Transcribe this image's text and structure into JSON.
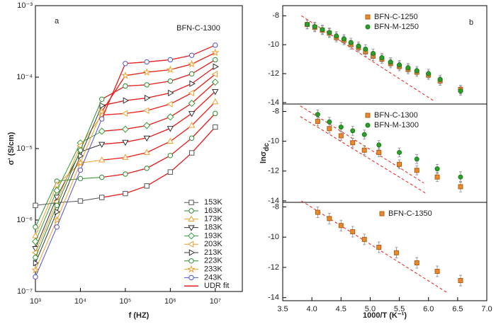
{
  "chart_data": [
    {
      "type": "line",
      "panel_label": "a",
      "annotation": "BFN-C-1300",
      "xlabel": "f (HZ)",
      "ylabel": "σ' (S/cm)",
      "log_x": true,
      "log_y": true,
      "xlim": [
        1000,
        40000000
      ],
      "ylim": [
        1e-07,
        0.001
      ],
      "xticks": [
        {
          "value": 1000,
          "label": "10³"
        },
        {
          "value": 10000,
          "label": "10⁴"
        },
        {
          "value": 100000,
          "label": "10⁵"
        },
        {
          "value": 1000000,
          "label": "10⁶"
        },
        {
          "value": 10000000,
          "label": "10⁷"
        }
      ],
      "yticks": [
        {
          "value": 1e-07,
          "label": "10⁻⁷"
        },
        {
          "value": 1e-06,
          "label": "10⁻⁶"
        },
        {
          "value": 1e-05,
          "label": "10⁻⁵"
        },
        {
          "value": 0.0001,
          "label": "10⁻⁴"
        },
        {
          "value": 0.001,
          "label": "10⁻³"
        }
      ],
      "legend": "lower right",
      "x": [
        1000,
        3000,
        10000,
        30000,
        100000,
        300000,
        1000000,
        3000000,
        10000000
      ],
      "series": [
        {
          "name": "153K",
          "color": "#555555",
          "marker": "square",
          "values": [
            1.6e-06,
            1.75e-06,
            1.85e-06,
            2.07e-06,
            2.35e-06,
            3e-06,
            4.7e-06,
            8.7e-06,
            2e-05
          ]
        },
        {
          "name": "163K",
          "color": "#2e8b2e",
          "marker": "circle",
          "values": [
            8e-07,
            3.5e-06,
            3.8e-06,
            3.96e-06,
            4.4e-06,
            5.3e-06,
            8e-06,
            1.4e-05,
            3.1e-05
          ]
        },
        {
          "name": "173K",
          "color": "#f0a030",
          "marker": "triangle-up",
          "values": [
            6e-07,
            3.1e-06,
            6.3e-06,
            6.9e-06,
            7.5e-06,
            8.8e-06,
            1.26e-05,
            2.1e-05,
            4.5e-05
          ]
        },
        {
          "name": "183K",
          "color": "#333333",
          "marker": "triangle-down",
          "values": [
            4e-07,
            2.1e-06,
            9e-06,
            1.15e-05,
            1.23e-05,
            1.41e-05,
            1.92e-05,
            3.1e-05,
            6.3e-05
          ]
        },
        {
          "name": "193K",
          "color": "#3a9a3a",
          "marker": "diamond",
          "values": [
            5e-07,
            2.6e-06,
            1.2e-05,
            1.75e-05,
            1.87e-05,
            2.1e-05,
            2.77e-05,
            4.3e-05,
            8.5e-05
          ]
        },
        {
          "name": "203K",
          "color": "#f0a030",
          "marker": "triangle-left",
          "values": [
            3.5e-07,
            1.8e-06,
            1.1e-05,
            2.95e-05,
            3.1e-05,
            3.4e-05,
            4.2e-05,
            6e-05,
            0.00011
          ]
        },
        {
          "name": "213K",
          "color": "#333333",
          "marker": "triangle-right",
          "values": [
            2.5e-07,
            1.3e-06,
            7.9e-06,
            4e-05,
            4.7e-05,
            5.1e-05,
            6e-05,
            8.1e-05,
            0.00014
          ]
        },
        {
          "name": "223K",
          "color": "#2e8b2e",
          "marker": "circle",
          "values": [
            3e-07,
            1.6e-06,
            9.5e-06,
            4.9e-05,
            7.5e-05,
            7.8e-05,
            8.8e-05,
            0.000111,
            0.000175
          ]
        },
        {
          "name": "233K",
          "color": "#f0a030",
          "marker": "star",
          "values": [
            2e-07,
            1e-06,
            6.3e-06,
            3.3e-05,
            0.000105,
            0.000117,
            0.000127,
            0.000152,
            0.00022
          ]
        },
        {
          "name": "243K",
          "color": "#5050d0",
          "marker": "circle",
          "values": [
            1.6e-07,
            8e-07,
            5e-06,
            2.6e-05,
            0.000155,
            0.000163,
            0.000175,
            0.000202,
            0.00028
          ]
        }
      ],
      "fit": {
        "name": "UDR fit",
        "color": "#e8201e"
      }
    },
    {
      "type": "scatter",
      "panel_label": "b",
      "xlabel": "1000/T (K⁻¹)",
      "ylabel": "lnσ",
      "ylabel_sub": "dc",
      "xlim": [
        3.5,
        7.0
      ],
      "xticks": [
        3.5,
        {
          "value": 4,
          "label": "4.0"
        },
        4.5,
        {
          "value": 5,
          "label": "5.0"
        },
        5.5,
        {
          "value": 6,
          "label": "6.0"
        },
        6.5,
        {
          "value": 7,
          "label": "7.0"
        }
      ],
      "guide_color": "#e8201e",
      "panels": [
        {
          "ylim": [
            -14.1,
            -7.3
          ],
          "yticks": [
            -8,
            -10,
            -12,
            -14
          ],
          "series": [
            {
              "name": "BFN-C-1250",
              "color": "#e8892a",
              "marker": "square",
              "x": [
                3.92,
                4.05,
                4.18,
                4.3,
                4.42,
                4.55,
                4.67,
                4.8,
                4.92,
                5.05,
                5.2,
                5.35,
                5.5,
                5.65,
                5.8,
                6.0,
                6.2,
                6.55
              ],
              "values": [
                -8.6,
                -8.8,
                -9.0,
                -9.2,
                -9.5,
                -9.7,
                -10.0,
                -10.2,
                -10.5,
                -10.8,
                -11.0,
                -11.3,
                -11.5,
                -11.7,
                -11.9,
                -12.1,
                -12.5,
                -13.1
              ],
              "errors": [
                0.3,
                0.3,
                0.3,
                0.3,
                0.3,
                0.3,
                0.3,
                0.3,
                0.3,
                0.3,
                0.3,
                0.3,
                0.3,
                0.3,
                0.3,
                0.3,
                0.3,
                0.3
              ]
            },
            {
              "name": "BFN-M-1250",
              "color": "#2aa02a",
              "marker": "circle",
              "x": [
                3.92,
                4.05,
                4.18,
                4.3,
                4.42,
                4.55,
                4.67,
                4.8,
                4.92,
                5.05,
                5.2,
                5.35,
                5.5,
                5.65,
                5.8,
                6.0,
                6.2,
                6.55
              ],
              "values": [
                -8.6,
                -8.75,
                -8.95,
                -9.15,
                -9.4,
                -9.6,
                -9.85,
                -10.1,
                -10.3,
                -10.6,
                -10.9,
                -11.2,
                -11.4,
                -11.6,
                -11.8,
                -12.0,
                -12.4,
                -13.2
              ],
              "errors": [
                0.3,
                0.3,
                0.3,
                0.3,
                0.3,
                0.3,
                0.3,
                0.3,
                0.3,
                0.3,
                0.3,
                0.3,
                0.3,
                0.3,
                0.3,
                0.3,
                0.3,
                0.3
              ]
            }
          ],
          "guides": [
            {
              "x": [
                3.82,
                6.08
              ],
              "y": [
                -8.0,
                -13.85
              ]
            }
          ]
        },
        {
          "ylim": [
            -14.1,
            -7.5
          ],
          "yticks": [
            -8,
            -10,
            -12,
            -14
          ],
          "series": [
            {
              "name": "BFN-C-1300",
              "color": "#e8892a",
              "marker": "square",
              "x": [
                4.1,
                4.3,
                4.5,
                4.7,
                4.9,
                5.15,
                5.5,
                5.8,
                6.15,
                6.55
              ],
              "values": [
                -8.67,
                -9.15,
                -9.63,
                -10.1,
                -10.6,
                -10.75,
                -11.55,
                -11.95,
                -12.4,
                -13.05
              ],
              "errors": [
                0.3,
                0.3,
                0.3,
                0.3,
                0.3,
                0.3,
                0.3,
                0.3,
                0.3,
                0.35
              ]
            },
            {
              "name": "BFN-M-1300",
              "color": "#2aa02a",
              "marker": "circle",
              "x": [
                4.1,
                4.3,
                4.5,
                4.7,
                4.9,
                5.15,
                5.5,
                5.8,
                6.15,
                6.55
              ],
              "values": [
                -8.2,
                -8.7,
                -9.05,
                -9.3,
                -9.55,
                -10.25,
                -10.75,
                -11.2,
                -11.85,
                -12.4
              ],
              "errors": [
                0.3,
                0.3,
                0.3,
                0.3,
                0.3,
                0.3,
                0.3,
                0.3,
                0.3,
                0.35
              ]
            }
          ],
          "guides": [
            {
              "x": [
                3.8,
                5.92
              ],
              "y": [
                -7.62,
                -12.8
              ]
            },
            {
              "x": [
                3.8,
                5.95
              ],
              "y": [
                -8.34,
                -13.48
              ]
            }
          ]
        },
        {
          "ylim": [
            -14.2,
            -7.7
          ],
          "yticks": [
            -8,
            -10,
            -12,
            -14
          ],
          "series": [
            {
              "name": "BFN-C-1350",
              "color": "#e8892a",
              "marker": "square",
              "x": [
                4.1,
                4.3,
                4.5,
                4.7,
                4.9,
                5.15,
                5.45,
                5.8,
                6.15,
                6.55
              ],
              "values": [
                -8.36,
                -8.77,
                -9.23,
                -9.64,
                -10.15,
                -10.67,
                -11.03,
                -11.7,
                -12.26,
                -12.87
              ],
              "errors": [
                0.35,
                0.35,
                0.35,
                0.35,
                0.35,
                0.35,
                0.35,
                0.35,
                0.35,
                0.35
              ]
            }
          ],
          "guides": [
            {
              "x": [
                3.82,
                6.31
              ],
              "y": [
                -7.6,
                -13.64
              ]
            }
          ]
        }
      ]
    }
  ]
}
